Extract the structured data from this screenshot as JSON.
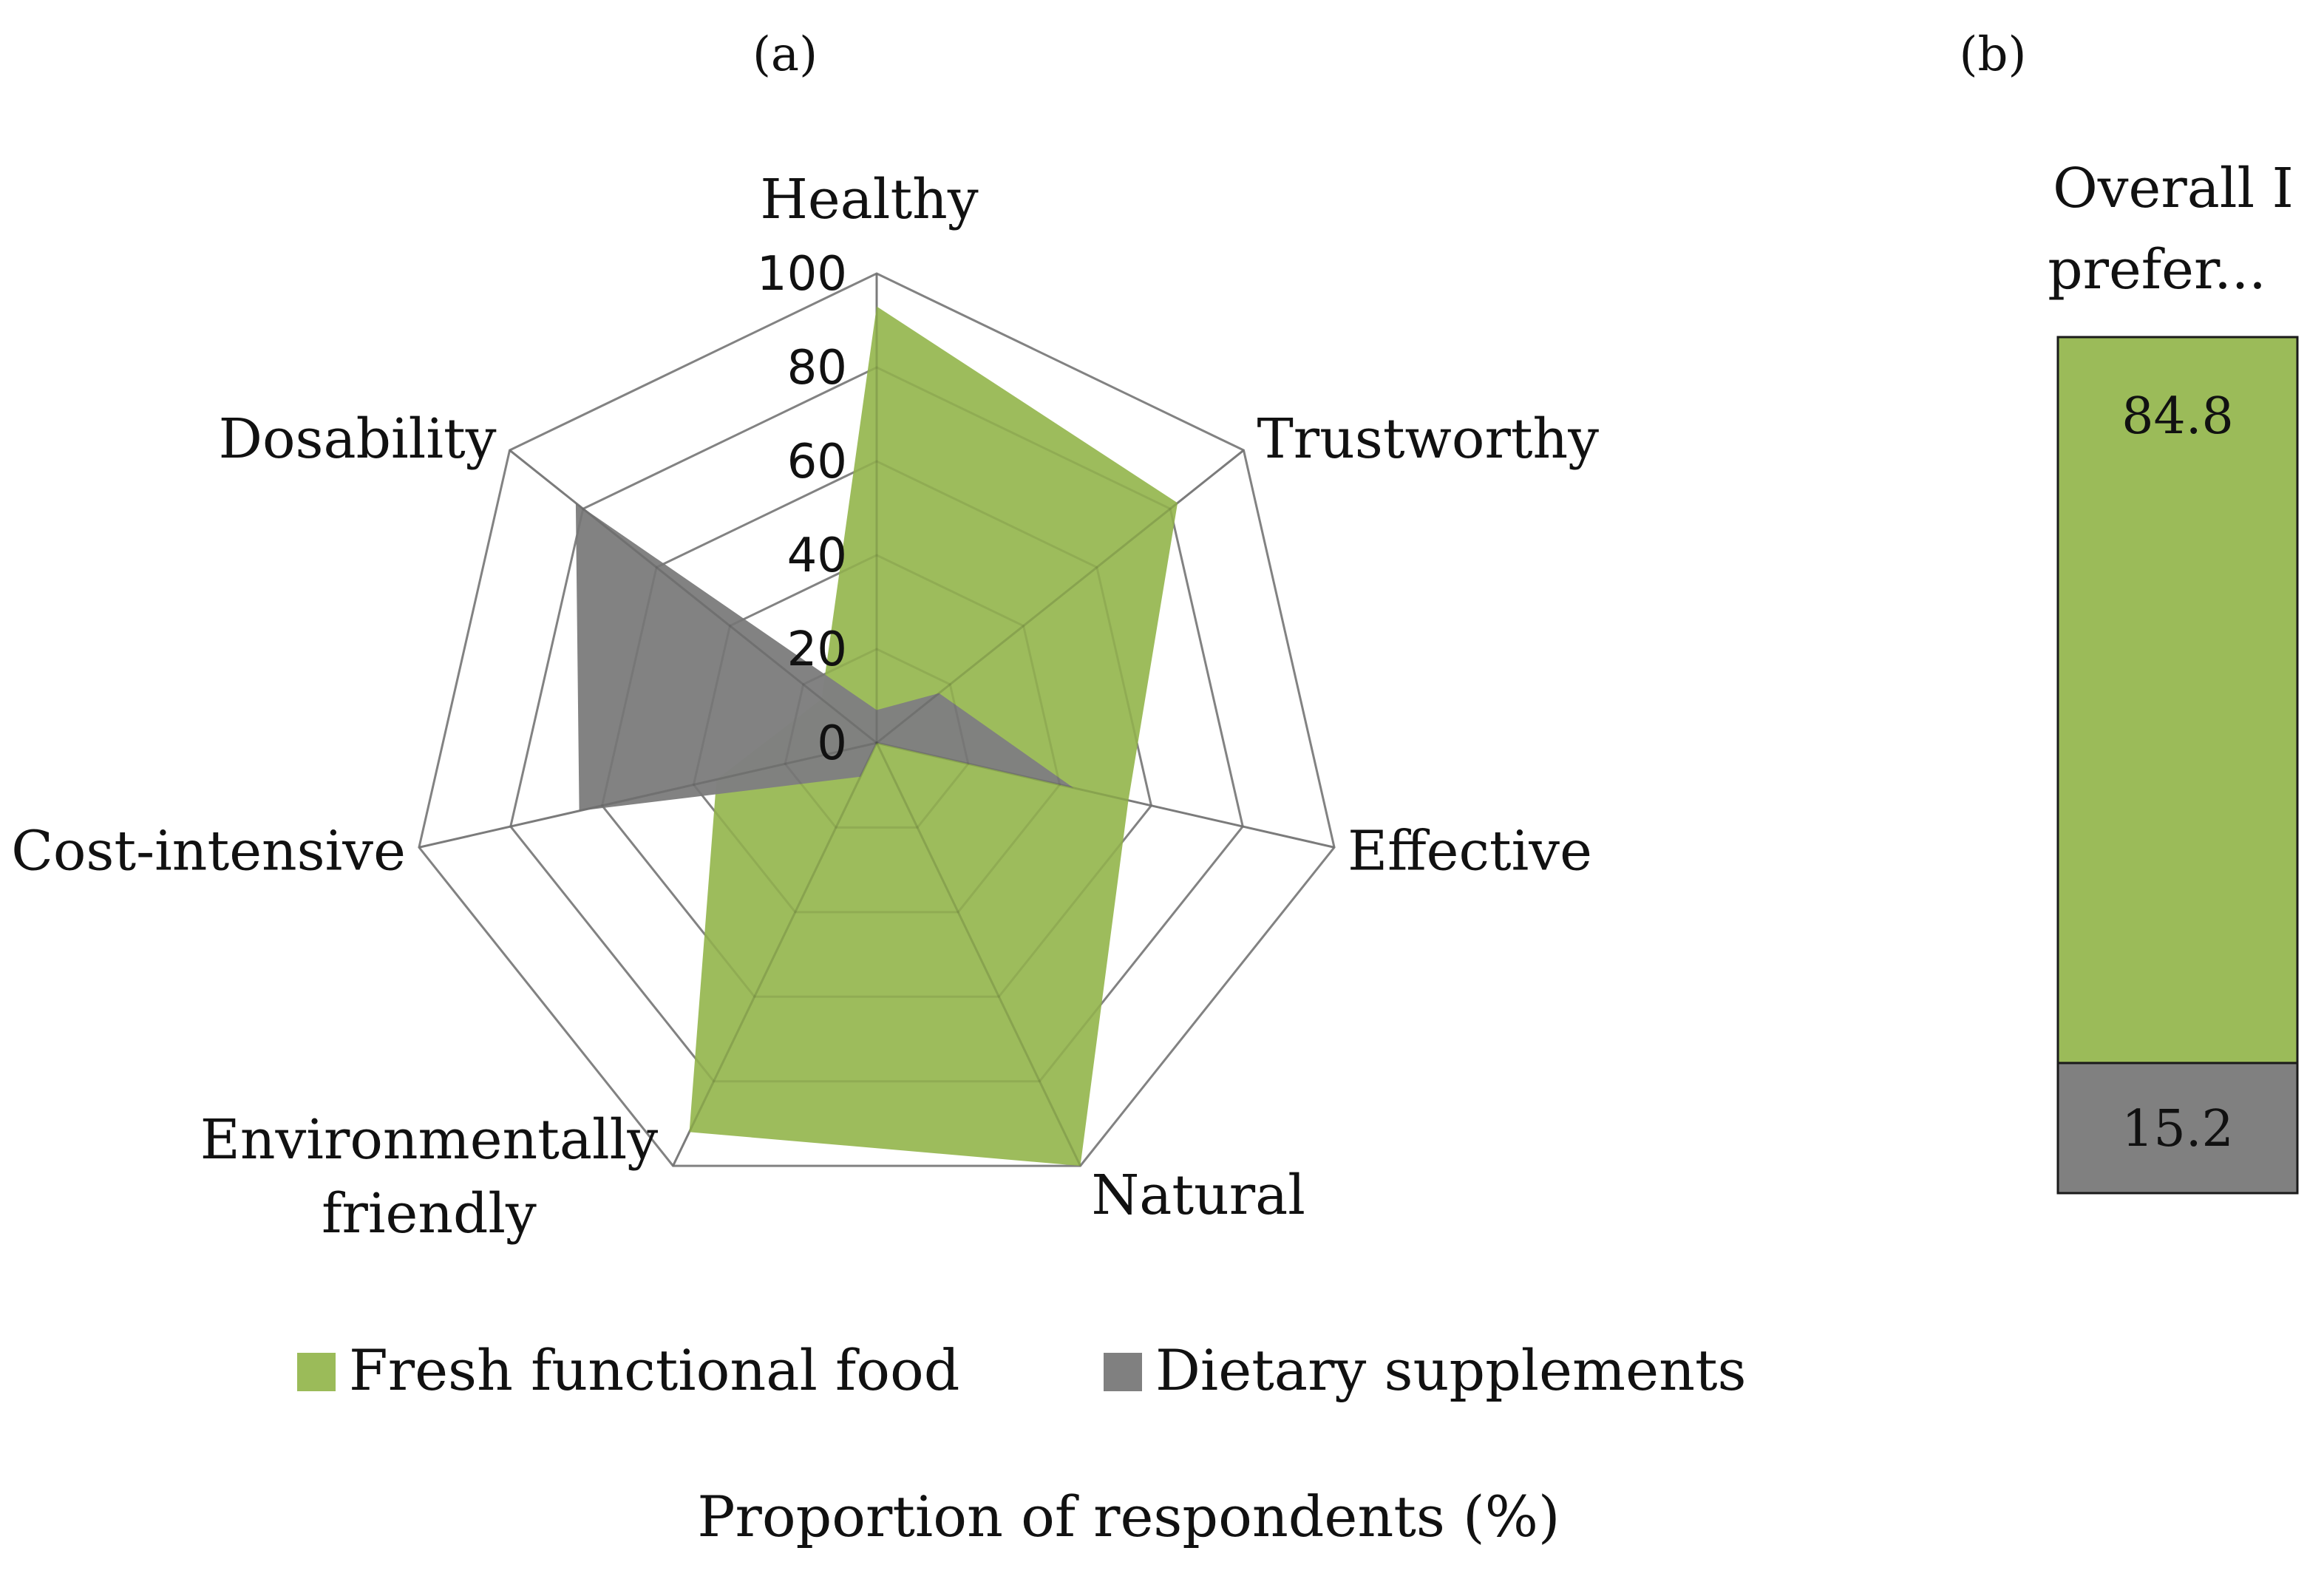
{
  "chart_data": [
    {
      "type": "radar",
      "panel_label": "(a)",
      "axes": [
        "Healthy",
        "Trustworthy",
        "Effective",
        "Natural",
        "Environmentally friendly",
        "Cost-intensive",
        "Dosability"
      ],
      "axis_label_lines": [
        [
          "Healthy"
        ],
        [
          "Trustworthy"
        ],
        [
          "Effective"
        ],
        [
          "Natural"
        ],
        [
          "Environmentally",
          "friendly"
        ],
        [
          "Cost-intensive"
        ],
        [
          "Dosability"
        ]
      ],
      "ticks": [
        0,
        20,
        40,
        60,
        80,
        100
      ],
      "rlim": [
        0,
        100
      ],
      "series": [
        {
          "name": "Fresh functional food",
          "color": "#9bbb59",
          "values": [
            93,
            82,
            55,
            100,
            92,
            35,
            15
          ]
        },
        {
          "name": "Dietary supplements",
          "color": "#808080",
          "values": [
            7,
            17,
            43,
            0,
            8,
            65,
            82
          ]
        }
      ],
      "xlabel": "Proportion of respondents (%)"
    },
    {
      "type": "bar",
      "stacked": true,
      "panel_label": "(b)",
      "title_lines": [
        "Overall I",
        "prefer..."
      ],
      "categories": [
        "Overall I prefer..."
      ],
      "series": [
        {
          "name": "Fresh functional food",
          "color": "#9bbb59",
          "values": [
            84.8
          ]
        },
        {
          "name": "Dietary supplements",
          "color": "#808080",
          "values": [
            15.2
          ]
        }
      ],
      "value_labels": [
        "84.8",
        "15.2"
      ],
      "ylim": [
        0,
        100
      ]
    }
  ],
  "legend": [
    {
      "label": "Fresh functional food",
      "color": "#9bbb59"
    },
    {
      "label": "Dietary supplements",
      "color": "#808080"
    }
  ],
  "caption": "Proportion of respondents (%)"
}
